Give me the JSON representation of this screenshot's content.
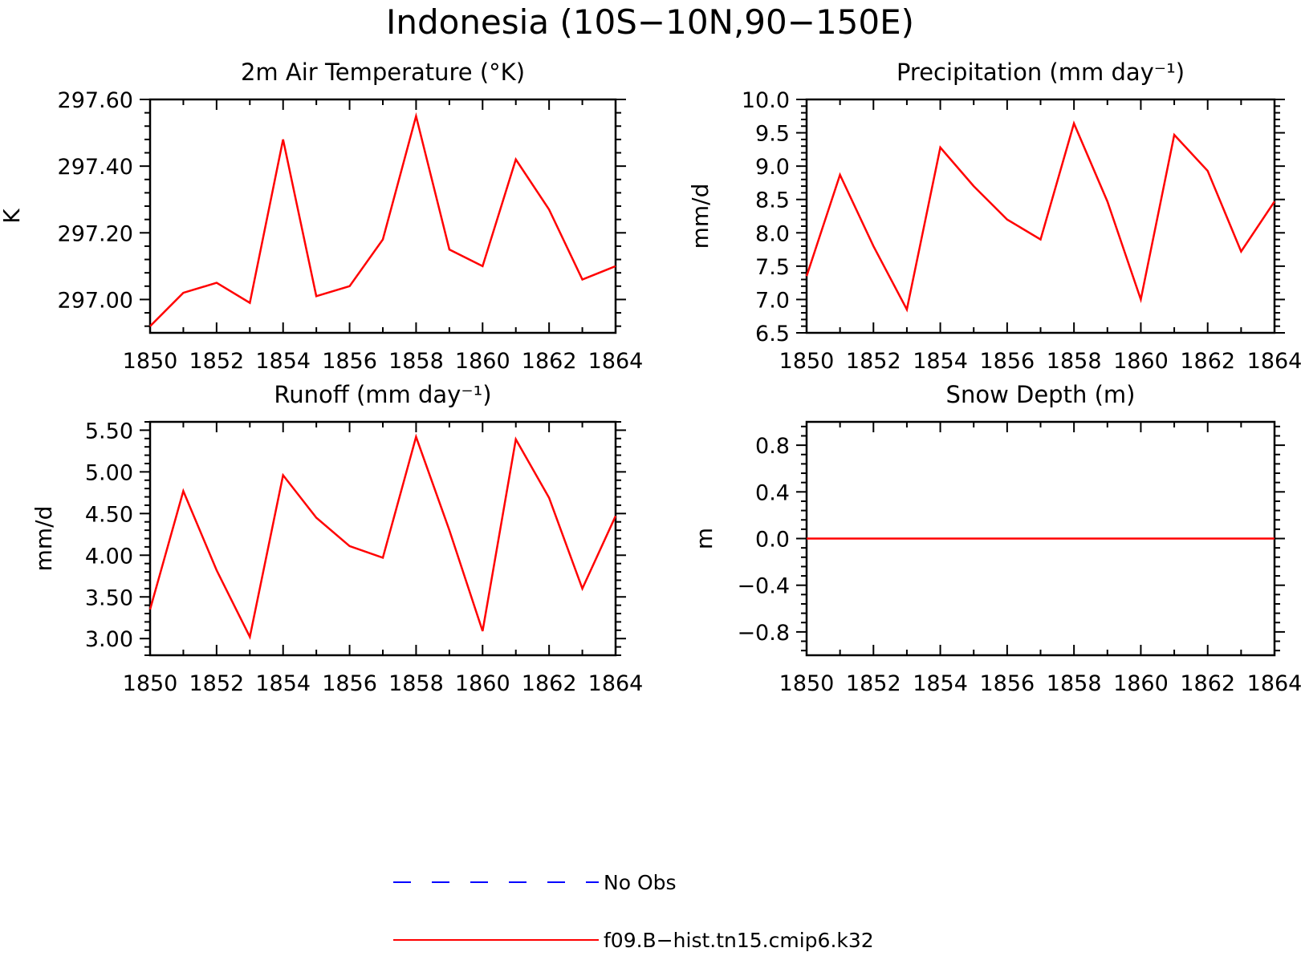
{
  "figure": {
    "title": "Indonesia (10S−10N,90−150E)"
  },
  "legend": {
    "items": [
      {
        "label": "No Obs",
        "color": "#0000ff",
        "style": "dashed"
      },
      {
        "label": "f09.B−hist.tn15.cmip6.k32",
        "color": "#ff0000",
        "style": "solid"
      }
    ]
  },
  "chart_data": [
    {
      "type": "line",
      "title": "2m Air Temperature (°K)",
      "ylabel": "K",
      "x": [
        1850,
        1851,
        1852,
        1853,
        1854,
        1855,
        1856,
        1857,
        1858,
        1859,
        1860,
        1861,
        1862,
        1863,
        1864
      ],
      "xlim": [
        1850,
        1864
      ],
      "xticks": [
        "1850",
        "1852",
        "1854",
        "1856",
        "1858",
        "1860",
        "1862",
        "1864"
      ],
      "ylim": [
        296.9,
        297.6
      ],
      "yticks": [
        "297.00",
        "297.20",
        "297.40",
        "297.60"
      ],
      "series": [
        {
          "values": [
            296.92,
            297.02,
            297.05,
            296.99,
            297.48,
            297.01,
            297.04,
            297.18,
            297.55,
            297.15,
            297.1,
            297.42,
            297.27,
            297.06,
            297.1
          ]
        }
      ]
    },
    {
      "type": "line",
      "title": "Precipitation (mm day⁻¹)",
      "ylabel": "mm/d",
      "x": [
        1850,
        1851,
        1852,
        1853,
        1854,
        1855,
        1856,
        1857,
        1858,
        1859,
        1860,
        1861,
        1862,
        1863,
        1864
      ],
      "xlim": [
        1850,
        1864
      ],
      "xticks": [
        "1850",
        "1852",
        "1854",
        "1856",
        "1858",
        "1860",
        "1862",
        "1864"
      ],
      "ylim": [
        6.5,
        10.0
      ],
      "yticks": [
        "6.5",
        "7.0",
        "7.5",
        "8.0",
        "8.5",
        "9.0",
        "9.5",
        "10.0"
      ],
      "series": [
        {
          "values": [
            7.35,
            8.87,
            7.8,
            6.85,
            9.28,
            8.7,
            8.2,
            7.9,
            9.64,
            8.47,
            7.0,
            9.47,
            8.93,
            7.72,
            8.47
          ]
        }
      ]
    },
    {
      "type": "line",
      "title": "Runoff (mm day⁻¹)",
      "ylabel": "mm/d",
      "x": [
        1850,
        1851,
        1852,
        1853,
        1854,
        1855,
        1856,
        1857,
        1858,
        1859,
        1860,
        1861,
        1862,
        1863,
        1864
      ],
      "xlim": [
        1850,
        1864
      ],
      "xticks": [
        "1850",
        "1852",
        "1854",
        "1856",
        "1858",
        "1860",
        "1862",
        "1864"
      ],
      "ylim": [
        2.8,
        5.6
      ],
      "yticks": [
        "3.00",
        "3.50",
        "4.00",
        "4.50",
        "5.00",
        "5.50"
      ],
      "series": [
        {
          "values": [
            3.35,
            4.77,
            3.82,
            3.02,
            4.96,
            4.45,
            4.11,
            3.97,
            5.42,
            4.3,
            3.09,
            5.39,
            4.69,
            3.6,
            4.47
          ]
        }
      ]
    },
    {
      "type": "line",
      "title": "Snow Depth (m)",
      "ylabel": "m",
      "x": [
        1850,
        1851,
        1852,
        1853,
        1854,
        1855,
        1856,
        1857,
        1858,
        1859,
        1860,
        1861,
        1862,
        1863,
        1864
      ],
      "xlim": [
        1850,
        1864
      ],
      "xticks": [
        "1850",
        "1852",
        "1854",
        "1856",
        "1858",
        "1860",
        "1862",
        "1864"
      ],
      "ylim": [
        -1.0,
        1.0
      ],
      "yticks": [
        "−0.8",
        "−0.4",
        "0.0",
        "0.4",
        "0.8"
      ],
      "series": [
        {
          "values": [
            0,
            0,
            0,
            0,
            0,
            0,
            0,
            0,
            0,
            0,
            0,
            0,
            0,
            0,
            0
          ]
        }
      ]
    }
  ]
}
